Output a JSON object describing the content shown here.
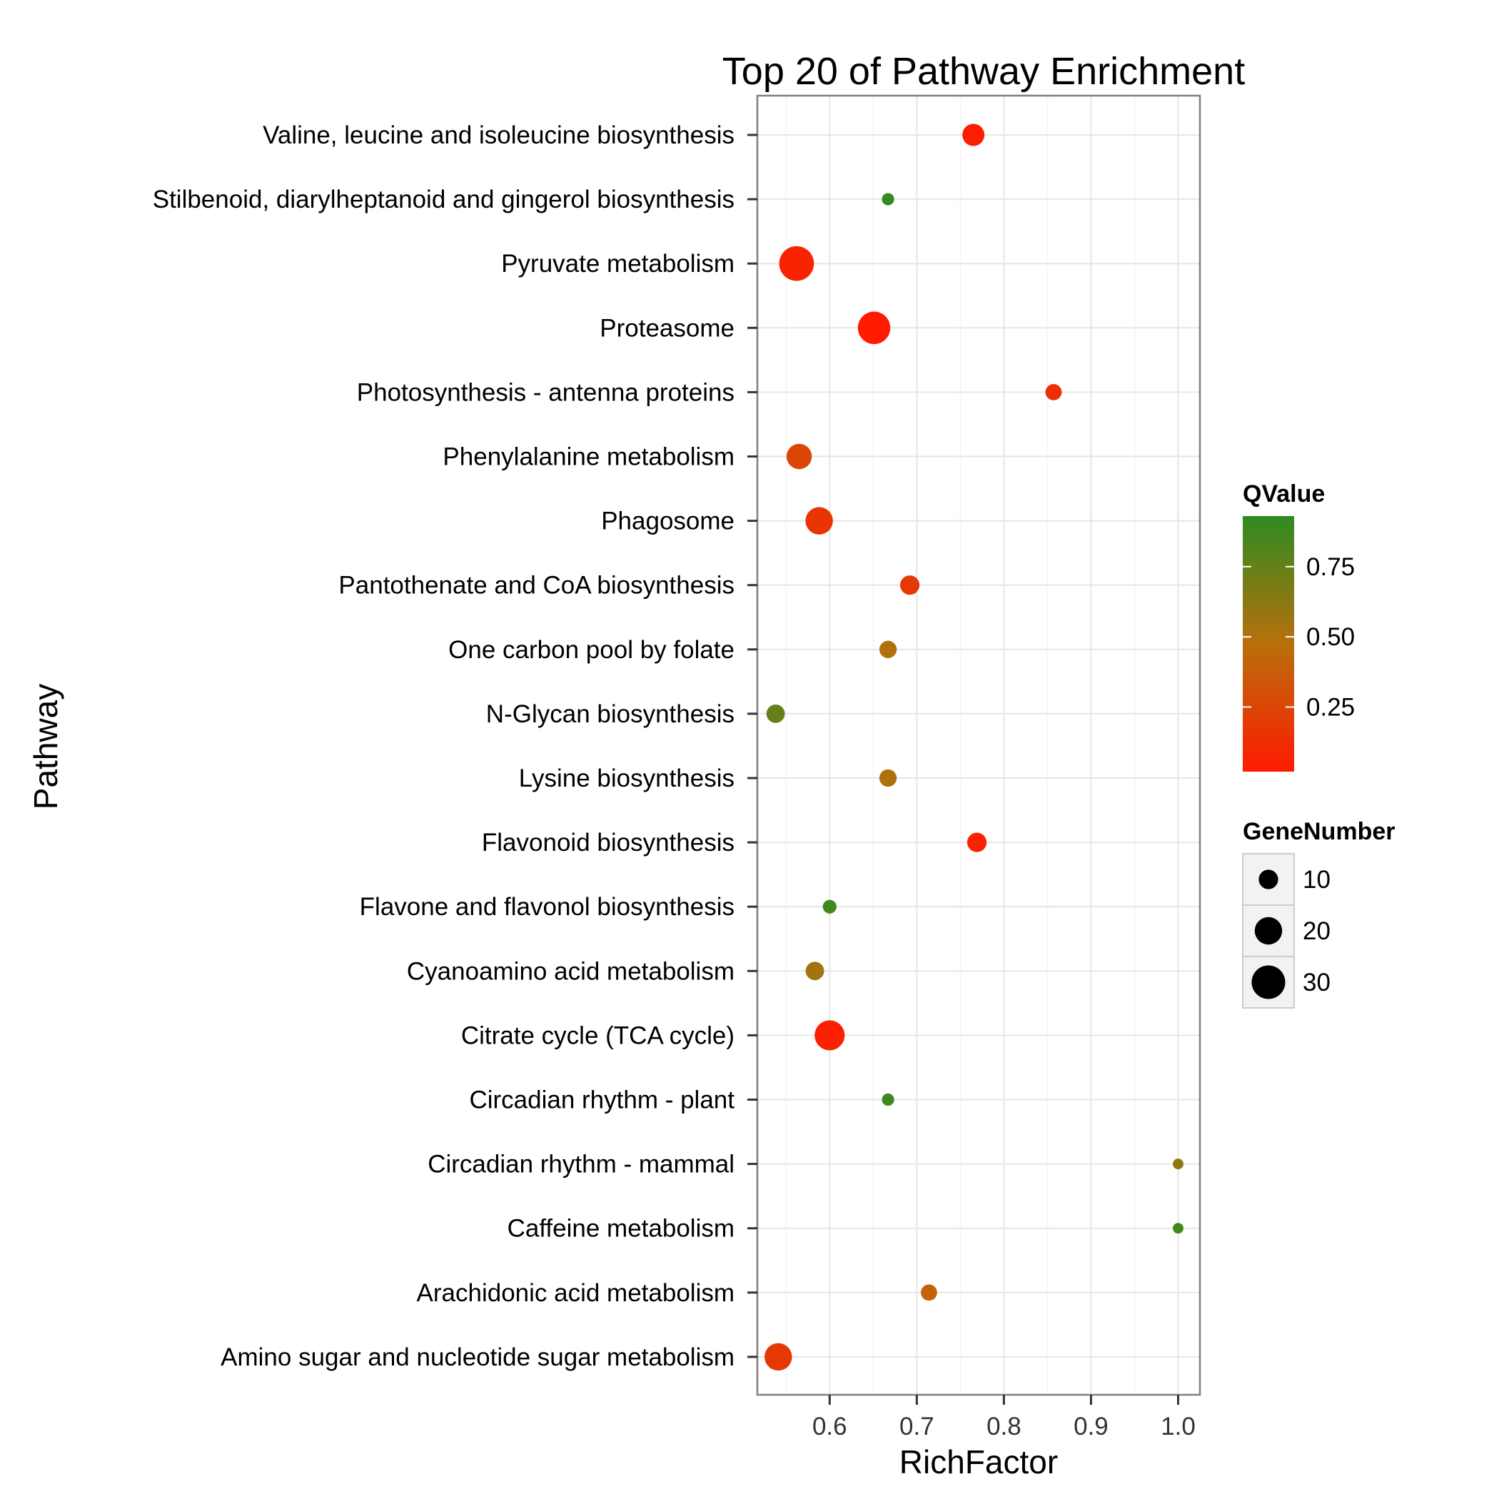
{
  "chart_data": {
    "type": "scatter",
    "title": "Top 20 of Pathway Enrichment",
    "xlabel": "RichFactor",
    "ylabel": "Pathway",
    "xlim": [
      0.517,
      1.025
    ],
    "x_ticks": [
      "0.6",
      "0.7",
      "0.8",
      "0.9",
      "1.0"
    ],
    "x_tick_values": [
      0.6,
      0.7,
      0.8,
      0.9,
      1.0
    ],
    "grid": true,
    "legend_position": "right",
    "color_legend": {
      "title": "QValue",
      "low_color": "#ff1a00",
      "mid_color": "#b8700b",
      "high_color": "#2e8b22",
      "range": [
        0.02,
        0.93
      ],
      "ticks": [
        "0.25",
        "0.50",
        "0.75"
      ],
      "tick_values": [
        0.25,
        0.5,
        0.75
      ]
    },
    "size_legend": {
      "title": "GeneNumber",
      "labels": [
        "10",
        "20",
        "30"
      ],
      "values": [
        10,
        20,
        30
      ]
    },
    "categories": [
      "Valine, leucine and isoleucine biosynthesis",
      "Stilbenoid, diarylheptanoid and gingerol biosynthesis",
      "Pyruvate metabolism",
      "Proteasome",
      "Photosynthesis - antenna proteins",
      "Phenylalanine metabolism",
      "Phagosome",
      "Pantothenate and CoA biosynthesis",
      "One carbon pool by folate",
      "N-Glycan biosynthesis",
      "Lysine biosynthesis",
      "Flavonoid biosynthesis",
      "Flavone and flavonol biosynthesis",
      "Cyanoamino acid metabolism",
      "Citrate cycle (TCA cycle)",
      "Circadian rhythm - plant",
      "Circadian rhythm - mammal",
      "Caffeine metabolism",
      "Arachidonic acid metabolism",
      "Amino sugar and nucleotide sugar metabolism"
    ],
    "rich_factor": [
      0.765,
      0.667,
      0.562,
      0.651,
      0.857,
      0.565,
      0.588,
      0.692,
      0.667,
      0.538,
      0.667,
      0.769,
      0.6,
      0.583,
      0.6,
      0.667,
      1.0,
      1.0,
      0.714,
      0.541
    ],
    "gene_number": [
      13,
      4,
      32,
      28,
      7,
      17,
      20,
      10,
      8,
      9,
      8,
      10,
      5,
      9,
      24,
      4,
      3,
      3,
      7,
      20
    ],
    "qvalue": [
      0.04,
      0.9,
      0.07,
      0.02,
      0.12,
      0.25,
      0.16,
      0.18,
      0.5,
      0.75,
      0.5,
      0.06,
      0.88,
      0.55,
      0.05,
      0.88,
      0.6,
      0.88,
      0.4,
      0.18
    ]
  }
}
